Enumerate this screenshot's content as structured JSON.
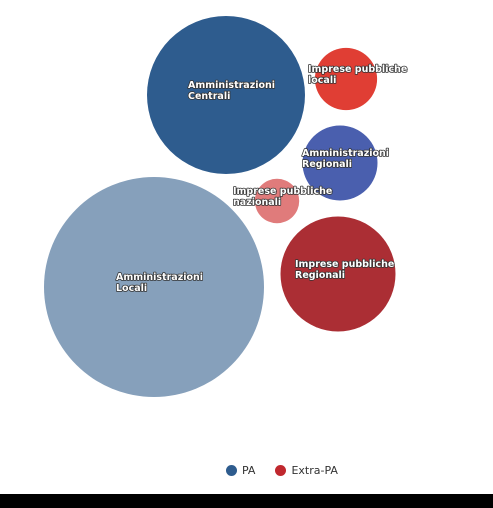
{
  "chart_data": {
    "type": "bubble",
    "title": "",
    "series": [
      {
        "name": "PA",
        "color": "#2e5c8e",
        "points": [
          {
            "label_lines": [
              "Amministrazioni",
              "Centrali"
            ],
            "value": 100,
            "color": "#2e5c8e"
          },
          {
            "label_lines": [
              "Amministrazioni",
              "Regionali"
            ],
            "value": 22.5,
            "color": "#4a5fae"
          },
          {
            "label_lines": [
              "Amministrazioni",
              "Locali"
            ],
            "value": 194,
            "color": "#86a0bb"
          }
        ]
      },
      {
        "name": "Extra-PA",
        "color": "#c0282e",
        "points": [
          {
            "label_lines": [
              "Imprese pubbliche",
              "locali"
            ],
            "value": 15.5,
            "color": "#e03e34"
          },
          {
            "label_lines": [
              "Imprese pubbliche",
              "nazionali"
            ],
            "value": 7.9,
            "color": "#e07b7b"
          },
          {
            "label_lines": [
              "Imprese pubbliche",
              "Regionali"
            ],
            "value": 53,
            "color": "#ab2e34"
          }
        ]
      }
    ],
    "legend": {
      "position": "bottom-center"
    }
  },
  "legend": {
    "items": [
      {
        "label": "PA",
        "color": "#2e5c8e"
      },
      {
        "label": "Extra-PA",
        "color": "#c0282e"
      }
    ]
  }
}
